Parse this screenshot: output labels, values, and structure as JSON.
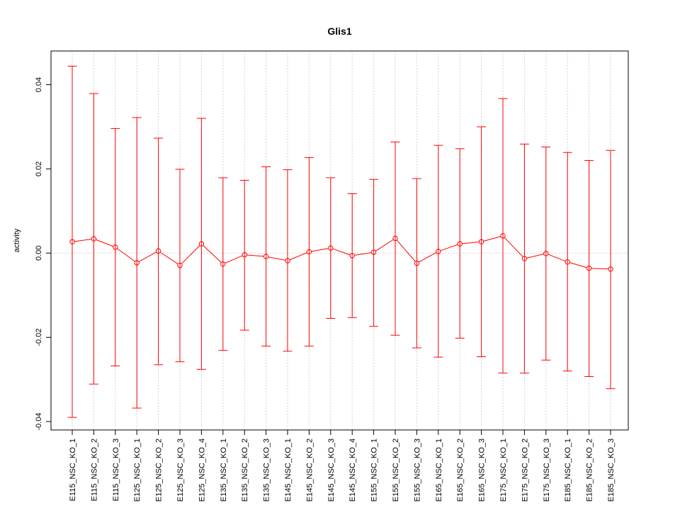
{
  "chart_data": {
    "type": "line",
    "title": "Glis1",
    "xlabel": "",
    "ylabel": "activity",
    "ylim": [
      -0.042,
      0.048
    ],
    "yticks": [
      -0.04,
      -0.02,
      0.0,
      0.02,
      0.04
    ],
    "ytick_labels": [
      "-0.04",
      "-0.02",
      "0.00",
      "0.02",
      "0.04"
    ],
    "grid": true,
    "color": "#ff0000",
    "grid_color": "#d3d3d3",
    "categories": [
      "E115_NSC_KO_1",
      "E115_NSC_KO_2",
      "E115_NSC_KO_3",
      "E125_NSC_KO_1",
      "E125_NSC_KO_2",
      "E125_NSC_KO_3",
      "E125_NSC_KO_4",
      "E135_NSC_KO_1",
      "E135_NSC_KO_2",
      "E135_NSC_KO_3",
      "E145_NSC_KO_1",
      "E145_NSC_KO_2",
      "E145_NSC_KO_3",
      "E145_NSC_KO_4",
      "E155_NSC_KO_1",
      "E155_NSC_KO_2",
      "E155_NSC_KO_3",
      "E165_NSC_KO_1",
      "E165_NSC_KO_2",
      "E165_NSC_KO_3",
      "E175_NSC_KO_1",
      "E175_NSC_KO_2",
      "E175_NSC_KO_3",
      "E185_NSC_KO_1",
      "E185_NSC_KO_2",
      "E185_NSC_KO_3"
    ],
    "values": [
      0.0027,
      0.0034,
      0.0014,
      -0.0023,
      0.0005,
      -0.0029,
      0.0022,
      -0.0026,
      -0.0004,
      -0.0008,
      -0.0018,
      0.0003,
      0.0012,
      -0.0006,
      0.0002,
      0.0035,
      -0.0024,
      0.0004,
      0.0022,
      0.0027,
      0.0041,
      -0.0013,
      -0.0001,
      -0.0021,
      -0.0036,
      -0.0038
    ],
    "upper": [
      0.0444,
      0.0379,
      0.0296,
      0.0322,
      0.0273,
      0.0199,
      0.032,
      0.0179,
      0.0173,
      0.0205,
      0.0198,
      0.0227,
      0.0179,
      0.0141,
      0.0175,
      0.0264,
      0.0177,
      0.0256,
      0.0248,
      0.03,
      0.0367,
      0.0259,
      0.0252,
      0.0239,
      0.022,
      0.0244
    ],
    "lower": [
      -0.039,
      -0.0311,
      -0.0268,
      -0.0368,
      -0.0265,
      -0.0258,
      -0.0276,
      -0.0231,
      -0.0183,
      -0.0221,
      -0.0233,
      -0.0221,
      -0.0155,
      -0.0153,
      -0.0174,
      -0.0195,
      -0.0225,
      -0.0247,
      -0.0202,
      -0.0246,
      -0.0285,
      -0.0285,
      -0.0254,
      -0.028,
      -0.0293,
      -0.0322
    ]
  }
}
